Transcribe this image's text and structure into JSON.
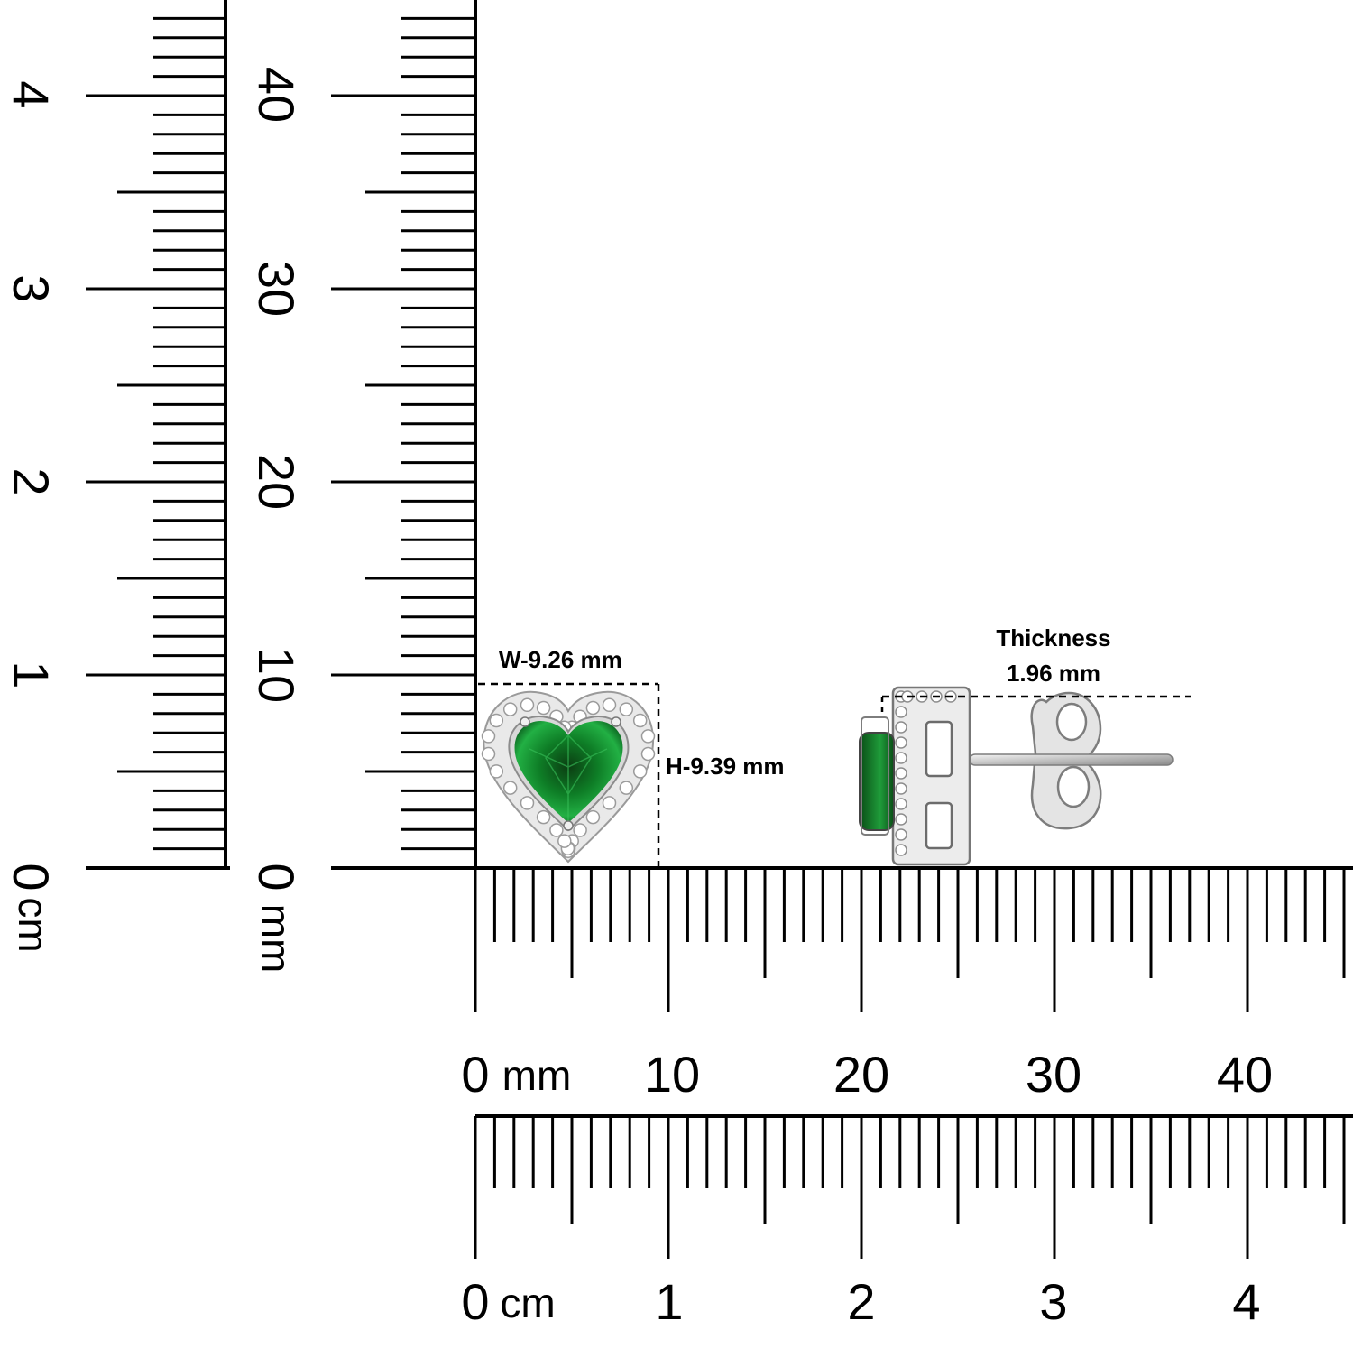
{
  "rulers": {
    "left_cm": {
      "unit": "cm",
      "zero_label": "0",
      "labels": [
        "1",
        "2",
        "3",
        "4"
      ]
    },
    "left_mm": {
      "unit": "mm",
      "zero_label": "0",
      "labels": [
        "10",
        "20",
        "30",
        "40"
      ]
    },
    "bottom_mm": {
      "unit": "mm",
      "zero_label": "0",
      "labels": [
        "10",
        "20",
        "30",
        "40"
      ]
    },
    "bottom_cm": {
      "unit": "cm",
      "zero_label": "0",
      "labels": [
        "1",
        "2",
        "3",
        "4"
      ]
    }
  },
  "measurements": {
    "width_label": "W-9.26 mm",
    "height_label": "H-9.39 mm",
    "thickness_title": "Thickness",
    "thickness_value": "1.96 mm"
  },
  "colors": {
    "ink": "#000000",
    "emerald": "#0f8a2a",
    "emerald_dark": "#04501a",
    "silver": "#c9c9c9"
  },
  "icons": {
    "front_view": "heart-earring-front-icon",
    "side_view": "earring-side-view-icon"
  }
}
